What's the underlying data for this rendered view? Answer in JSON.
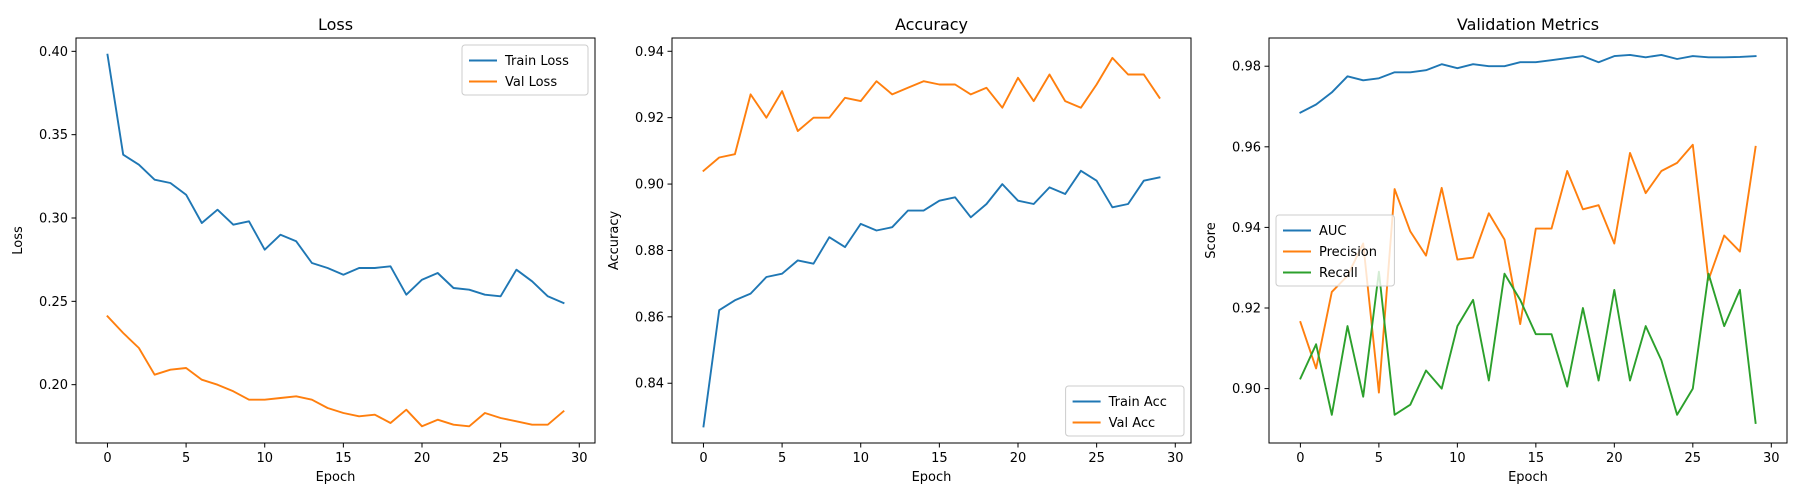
{
  "chart_data": [
    {
      "type": "line",
      "title": "Loss",
      "xlabel": "Epoch",
      "ylabel": "Loss",
      "xlim": [
        -2,
        31
      ],
      "ylim": [
        0.165,
        0.408
      ],
      "xticks": [
        0,
        5,
        10,
        15,
        20,
        25,
        30
      ],
      "yticks": [
        0.2,
        0.25,
        0.3,
        0.35,
        0.4
      ],
      "ytick_labels": [
        "0.20",
        "0.25",
        "0.30",
        "0.35",
        "0.40"
      ],
      "legend_position": "top-right",
      "x": [
        0,
        1,
        2,
        3,
        4,
        5,
        6,
        7,
        8,
        9,
        10,
        11,
        12,
        13,
        14,
        15,
        16,
        17,
        18,
        19,
        20,
        21,
        22,
        23,
        24,
        25,
        26,
        27,
        28,
        29
      ],
      "series": [
        {
          "name": "Train Loss",
          "color": "#1f77b4",
          "values": [
            0.398,
            0.338,
            0.332,
            0.323,
            0.321,
            0.314,
            0.297,
            0.305,
            0.296,
            0.298,
            0.281,
            0.29,
            0.286,
            0.273,
            0.27,
            0.266,
            0.27,
            0.27,
            0.271,
            0.254,
            0.263,
            0.267,
            0.258,
            0.257,
            0.254,
            0.253,
            0.269,
            0.262,
            0.253,
            0.249
          ]
        },
        {
          "name": "Val Loss",
          "color": "#ff7f0e",
          "values": [
            0.241,
            0.231,
            0.222,
            0.206,
            0.209,
            0.21,
            0.203,
            0.2,
            0.196,
            0.191,
            0.191,
            0.192,
            0.193,
            0.191,
            0.186,
            0.183,
            0.181,
            0.182,
            0.177,
            0.185,
            0.175,
            0.179,
            0.176,
            0.175,
            0.183,
            0.18,
            0.178,
            0.176,
            0.176,
            0.184
          ]
        }
      ]
    },
    {
      "type": "line",
      "title": "Accuracy",
      "xlabel": "Epoch",
      "ylabel": "Accuracy",
      "xlim": [
        -2,
        31
      ],
      "ylim": [
        0.822,
        0.944
      ],
      "xticks": [
        0,
        5,
        10,
        15,
        20,
        25,
        30
      ],
      "yticks": [
        0.84,
        0.86,
        0.88,
        0.9,
        0.92,
        0.94
      ],
      "ytick_labels": [
        "0.84",
        "0.86",
        "0.88",
        "0.90",
        "0.92",
        "0.94"
      ],
      "legend_position": "bottom-right",
      "x": [
        0,
        1,
        2,
        3,
        4,
        5,
        6,
        7,
        8,
        9,
        10,
        11,
        12,
        13,
        14,
        15,
        16,
        17,
        18,
        19,
        20,
        21,
        22,
        23,
        24,
        25,
        26,
        27,
        28,
        29
      ],
      "series": [
        {
          "name": "Train Acc",
          "color": "#1f77b4",
          "values": [
            0.827,
            0.862,
            0.865,
            0.867,
            0.872,
            0.873,
            0.877,
            0.876,
            0.884,
            0.881,
            0.888,
            0.886,
            0.887,
            0.892,
            0.892,
            0.895,
            0.896,
            0.89,
            0.894,
            0.9,
            0.895,
            0.894,
            0.899,
            0.897,
            0.904,
            0.901,
            0.893,
            0.894,
            0.901,
            0.902
          ]
        },
        {
          "name": "Val Acc",
          "color": "#ff7f0e",
          "values": [
            0.904,
            0.908,
            0.909,
            0.927,
            0.92,
            0.928,
            0.916,
            0.92,
            0.92,
            0.926,
            0.925,
            0.931,
            0.927,
            0.929,
            0.931,
            0.93,
            0.93,
            0.927,
            0.929,
            0.923,
            0.932,
            0.925,
            0.933,
            0.925,
            0.923,
            0.93,
            0.938,
            0.933,
            0.933,
            0.926
          ]
        }
      ]
    },
    {
      "type": "line",
      "title": "Validation Metrics",
      "xlabel": "Epoch",
      "ylabel": "Score",
      "xlim": [
        -2,
        31
      ],
      "ylim": [
        0.8865,
        0.987
      ],
      "xticks": [
        0,
        5,
        10,
        15,
        20,
        25,
        30
      ],
      "yticks": [
        0.9,
        0.92,
        0.94,
        0.96,
        0.98
      ],
      "ytick_labels": [
        "0.90",
        "0.92",
        "0.94",
        "0.96",
        "0.98"
      ],
      "legend_position": "center-left",
      "x": [
        0,
        1,
        2,
        3,
        4,
        5,
        6,
        7,
        8,
        9,
        10,
        11,
        12,
        13,
        14,
        15,
        16,
        17,
        18,
        19,
        20,
        21,
        22,
        23,
        24,
        25,
        26,
        27,
        28,
        29
      ],
      "series": [
        {
          "name": "AUC",
          "color": "#1f77b4",
          "values": [
            0.9685,
            0.9705,
            0.9735,
            0.9775,
            0.9765,
            0.977,
            0.9785,
            0.9785,
            0.979,
            0.9805,
            0.9795,
            0.9805,
            0.98,
            0.98,
            0.981,
            0.981,
            0.9815,
            0.982,
            0.9825,
            0.981,
            0.9825,
            0.9828,
            0.9822,
            0.9828,
            0.9818,
            0.9825,
            0.9822,
            0.9822,
            0.9823,
            0.9825
          ]
        },
        {
          "name": "Precision",
          "color": "#ff7f0e",
          "values": [
            0.9165,
            0.905,
            0.924,
            0.928,
            0.936,
            0.899,
            0.9495,
            0.939,
            0.933,
            0.9498,
            0.932,
            0.9325,
            0.9435,
            0.937,
            0.916,
            0.9397,
            0.9397,
            0.954,
            0.9445,
            0.9455,
            0.936,
            0.9585,
            0.9485,
            0.954,
            0.956,
            0.9605,
            0.927,
            0.938,
            0.934,
            0.96
          ]
        },
        {
          "name": "Recall",
          "color": "#2ca02c",
          "values": [
            0.9025,
            0.911,
            0.8935,
            0.9155,
            0.898,
            0.929,
            0.8935,
            0.896,
            0.9045,
            0.9,
            0.9155,
            0.922,
            0.902,
            0.9285,
            0.922,
            0.9135,
            0.9135,
            0.9005,
            0.92,
            0.902,
            0.9245,
            0.902,
            0.9155,
            0.907,
            0.8935,
            0.9,
            0.9285,
            0.9155,
            0.9245,
            0.8915
          ]
        }
      ]
    }
  ]
}
